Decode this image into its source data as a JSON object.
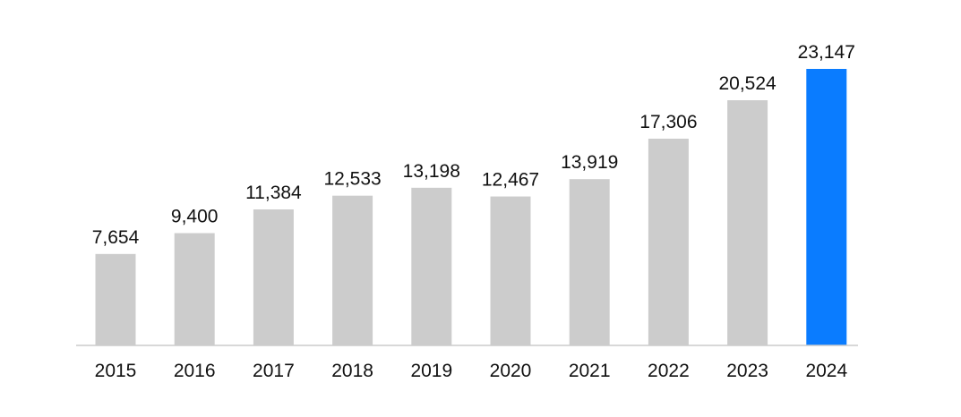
{
  "chart_data": {
    "type": "bar",
    "title": "",
    "xlabel": "",
    "ylabel": "",
    "categories": [
      "2015",
      "2016",
      "2017",
      "2018",
      "2019",
      "2020",
      "2021",
      "2022",
      "2023",
      "2024"
    ],
    "values": [
      7654,
      9400,
      11384,
      12533,
      13198,
      12467,
      13919,
      17306,
      20524,
      23147
    ],
    "value_labels": [
      "7,654",
      "9,400",
      "11,384",
      "12,533",
      "13,198",
      "12,467",
      "13,919",
      "17,306",
      "20,524",
      "23,147"
    ],
    "ylim": [
      0,
      23147
    ],
    "grid": false,
    "legend": "none",
    "highlighted_category": "2024",
    "colors": {
      "default_bar": "#cccccc",
      "highlight_bar": "#0a7cff",
      "axis": "#cccccc",
      "text": "#111111"
    }
  }
}
